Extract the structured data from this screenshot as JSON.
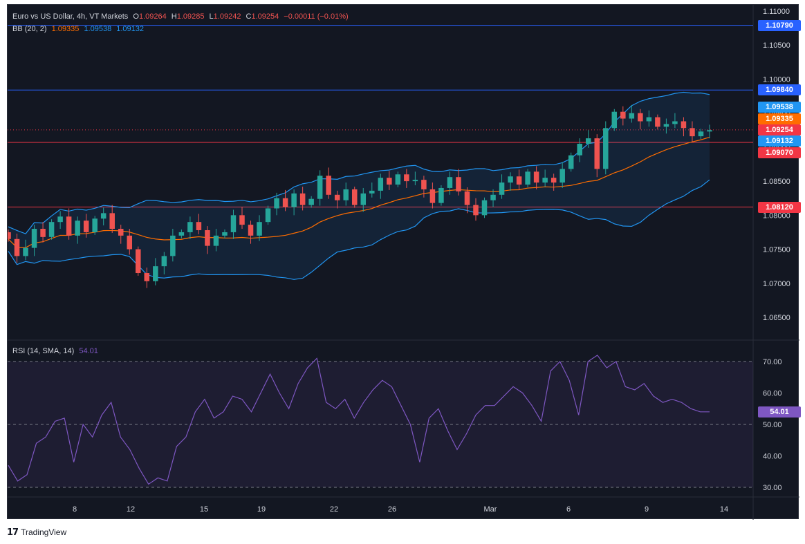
{
  "legend": {
    "symbol_title": "Euro vs US Dollar, 4h, VT Markets",
    "o_label": "O",
    "o_value": "1.09264",
    "h_label": "H",
    "h_value": "1.09285",
    "l_label": "L",
    "l_value": "1.09242",
    "c_label": "C",
    "c_value": "1.09254",
    "change": "−0.00011 (−0.01%)",
    "bb_label": "BB (20, 2)",
    "bb_basis": "1.09335",
    "bb_upper": "1.09538",
    "bb_lower": "1.09132",
    "rsi_label": "RSI (14, SMA, 14)",
    "rsi_value": "54.01"
  },
  "badges": {
    "line_1": "1.10790",
    "line_2": "1.09840",
    "bb_upper": "1.09538",
    "bb_basis": "1.09335",
    "last_price": "1.09254",
    "bb_lower": "1.09132",
    "line_3": "1.09070",
    "line_4": "1.08120",
    "rsi": "54.01"
  },
  "colors": {
    "background": "#131722",
    "bull": "#26a69a",
    "bear": "#ef5350",
    "bb_upper": "#2196f3",
    "bb_basis": "#ff6d00",
    "rsi_line": "#7e57c2",
    "blue_level": "#2962ff",
    "red_level": "#f23645"
  },
  "footer": {
    "logo_icon": "tradingview-logo-icon",
    "logo_glyph": "17",
    "brand": "TradingView"
  },
  "chart_data": [
    {
      "type": "candlestick",
      "title": "Euro vs US Dollar, 4h, VT Markets",
      "x_ticks": [
        "8",
        "12",
        "15",
        "19",
        "22",
        "26",
        "Mar",
        "6",
        "9",
        "14"
      ],
      "y_ticks": [
        "1.11000",
        "1.10500",
        "1.10000",
        "1.09500",
        "1.09000",
        "1.08500",
        "1.08000",
        "1.07500",
        "1.07000",
        "1.06500"
      ],
      "ylim": [
        1.062,
        1.11
      ],
      "horizontal_levels": [
        {
          "price": 1.1079,
          "color": "blue"
        },
        {
          "price": 1.0984,
          "color": "blue"
        },
        {
          "price": 1.0907,
          "color": "red"
        },
        {
          "price": 1.0812,
          "color": "red"
        }
      ],
      "close_path": [
        1.0765,
        1.074,
        1.0752,
        1.078,
        1.0768,
        1.079,
        1.0798,
        1.077,
        1.0792,
        1.0775,
        1.0795,
        1.0803,
        1.078,
        1.077,
        1.075,
        1.0715,
        1.0703,
        1.0725,
        1.074,
        1.077,
        1.0775,
        1.079,
        1.0778,
        1.0755,
        1.077,
        1.0775,
        1.08,
        1.0786,
        1.077,
        1.079,
        1.081,
        1.0825,
        1.0812,
        1.0832,
        1.0815,
        1.0824,
        1.0858,
        1.083,
        1.0822,
        1.0838,
        1.0815,
        1.0832,
        1.0836,
        1.0855,
        1.0845,
        1.086,
        1.085,
        1.0852,
        1.0838,
        1.0818,
        1.084,
        1.0856,
        1.0835,
        1.0815,
        1.08,
        1.0822,
        1.083,
        1.0848,
        1.0857,
        1.0845,
        1.0864,
        1.0848,
        1.0855,
        1.0848,
        1.0868,
        1.0888,
        1.0905,
        1.0913,
        1.0868,
        1.0928,
        1.0952,
        1.0942,
        1.095,
        1.0938,
        1.0944,
        1.093,
        1.0934,
        1.0938,
        1.0928,
        1.0916,
        1.0923,
        1.0925
      ],
      "close_path_x_range": [
        "start",
        "10 Mar"
      ],
      "bollinger_bands": {
        "period": 20,
        "stddev": 2,
        "upper": 1.09538,
        "basis": 1.09335,
        "lower": 1.09132
      },
      "last": {
        "open": 1.09264,
        "high": 1.09285,
        "low": 1.09242,
        "close": 1.09254
      }
    },
    {
      "type": "line",
      "title": "RSI (14, SMA, 14)",
      "y_ticks": [
        "70.00",
        "60.00",
        "50.00",
        "40.00",
        "30.00"
      ],
      "ylim": [
        28,
        72
      ],
      "bands": [
        30,
        70
      ],
      "x_range": [
        "start",
        "10 Mar"
      ],
      "values": [
        37,
        32,
        34,
        44,
        46,
        51,
        52,
        38,
        50,
        46,
        53,
        57,
        46,
        42,
        36,
        31,
        33,
        32,
        43,
        46,
        54,
        58,
        52,
        54,
        59,
        58,
        54,
        60,
        66,
        60,
        55,
        63,
        68,
        71,
        57,
        55,
        58,
        52,
        57,
        61,
        64,
        62,
        56,
        50,
        38,
        52,
        55,
        48,
        42,
        47,
        53,
        56,
        56,
        59,
        62,
        60,
        56,
        51,
        67,
        70,
        64,
        53,
        70,
        72,
        68,
        70,
        62,
        61,
        63,
        59,
        57,
        58,
        57,
        55,
        54,
        54
      ],
      "last": 54.01
    }
  ]
}
